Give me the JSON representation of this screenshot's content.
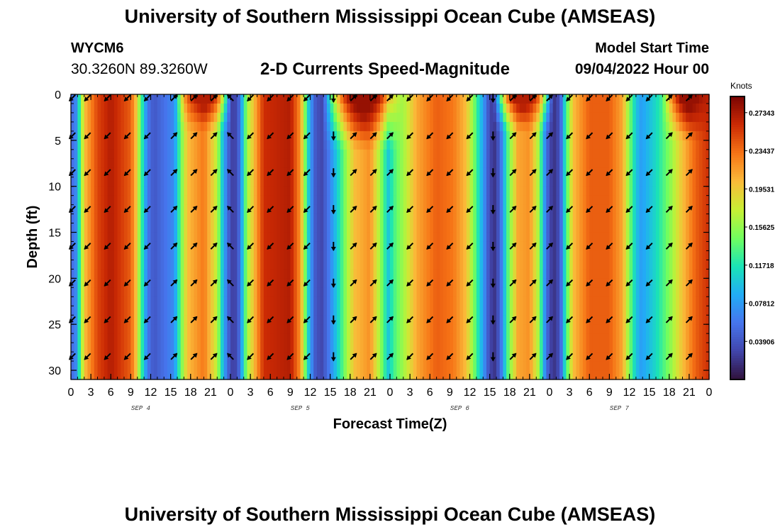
{
  "header": {
    "title": "University of Southern Mississippi Ocean Cube (AMSEAS)",
    "station_id": "WYCM6",
    "coordinates": "30.3260N  89.3260W",
    "plot_subtitle": "2-D Currents Speed-Magnitude",
    "model_start_label": "Model Start Time",
    "model_start_value": "09/04/2022 Hour 00"
  },
  "footer": {
    "repeat_title": "University of Southern Mississippi Ocean Cube (AMSEAS)"
  },
  "chart_data": {
    "type": "heatmap",
    "title": "2-D Currents Speed-Magnitude",
    "xlabel": "Forecast Time(Z)",
    "ylabel": "Depth (ft)",
    "x_range_hours": [
      0,
      96
    ],
    "y_range_ft": [
      0,
      31
    ],
    "y_inverted": true,
    "x_tick_labels": [
      "0",
      "3",
      "6",
      "9",
      "12",
      "15",
      "18",
      "21",
      "0",
      "3",
      "6",
      "9",
      "12",
      "15",
      "18",
      "21",
      "0",
      "3",
      "6",
      "9",
      "12",
      "15",
      "18",
      "21",
      "0",
      "3",
      "6",
      "9",
      "12",
      "15",
      "18",
      "21",
      "0"
    ],
    "x_tick_hours": [
      0,
      3,
      6,
      9,
      12,
      15,
      18,
      21,
      24,
      27,
      30,
      33,
      36,
      39,
      42,
      45,
      48,
      51,
      54,
      57,
      60,
      63,
      66,
      69,
      72,
      75,
      78,
      81,
      84,
      87,
      90,
      93,
      96
    ],
    "day_labels": [
      {
        "label": "SEP 4",
        "hour": 10.5
      },
      {
        "label": "SEP 5",
        "hour": 34.5
      },
      {
        "label": "SEP 6",
        "hour": 58.5
      },
      {
        "label": "SEP 7",
        "hour": 82.5
      }
    ],
    "y_ticks": [
      0,
      5,
      10,
      15,
      20,
      25,
      30
    ],
    "colorbar": {
      "unit_label": "Knots",
      "min": 0.0,
      "max": 0.29,
      "tick_labels": [
        "0.27343",
        "0.23437",
        "0.19531",
        "0.15625",
        "0.11718",
        "0.07812",
        "0.03906"
      ],
      "tick_values": [
        0.27343,
        0.23437,
        0.19531,
        0.15625,
        0.11718,
        0.07812,
        0.03906
      ]
    },
    "speed_profile": {
      "description": "approximate depth-averaged speed (knots) vs forecast hour",
      "hours": [
        0,
        0.8,
        2,
        4,
        6,
        9,
        9.8,
        10.6,
        11.5,
        12.5,
        13.5,
        15.5,
        16.5,
        17.5,
        20,
        22,
        22.8,
        23.6,
        24.5,
        25.3,
        26.5,
        29,
        33,
        34.5,
        35.2,
        36,
        36.8,
        37.7,
        38.8,
        40.5,
        41.5,
        42.6,
        45,
        46.5,
        47.7,
        48.6,
        50.4,
        52,
        55,
        57.5,
        59.5,
        61,
        62.2,
        63,
        63.8,
        64.6,
        65.8,
        67.2,
        69,
        70.4,
        71.2,
        72,
        72.8,
        73.6,
        74.4,
        75.5,
        78,
        81,
        83,
        84,
        85,
        85.8,
        88,
        90,
        92,
        94,
        96
      ],
      "speed": [
        0.05,
        0.07,
        0.2,
        0.25,
        0.27,
        0.24,
        0.2,
        0.13,
        0.06,
        0.04,
        0.05,
        0.07,
        0.14,
        0.2,
        0.23,
        0.17,
        0.1,
        0.05,
        0.02,
        0.05,
        0.16,
        0.26,
        0.27,
        0.22,
        0.15,
        0.08,
        0.04,
        0.03,
        0.06,
        0.12,
        0.16,
        0.2,
        0.22,
        0.16,
        0.1,
        0.13,
        0.17,
        0.21,
        0.24,
        0.23,
        0.2,
        0.13,
        0.07,
        0.03,
        0.02,
        0.05,
        0.14,
        0.21,
        0.22,
        0.16,
        0.08,
        0.03,
        0.02,
        0.04,
        0.12,
        0.2,
        0.24,
        0.24,
        0.21,
        0.15,
        0.1,
        0.08,
        0.11,
        0.15,
        0.2,
        0.24,
        0.26
      ]
    },
    "surface_highs": [
      {
        "center_hour": 20,
        "width_hours": 4,
        "max_depth_ft": 4,
        "speed": 0.27
      },
      {
        "center_hour": 44,
        "width_hours": 6,
        "max_depth_ft": 6,
        "speed": 0.28
      },
      {
        "center_hour": 68,
        "width_hours": 4.5,
        "max_depth_ft": 4,
        "speed": 0.27
      },
      {
        "center_hour": 93,
        "width_hours": 4,
        "max_depth_ft": 5,
        "speed": 0.28
      }
    ],
    "vector_columns_hours": [
      0,
      2.5,
      5.5,
      8.5,
      11.5,
      15.5,
      18.5,
      21.5,
      24,
      27,
      30,
      33,
      35.5,
      39.5,
      42.5,
      45.5,
      48,
      51,
      54,
      57,
      60,
      63.5,
      66.5,
      69.5,
      72,
      75,
      78,
      81,
      84,
      87,
      90,
      93
    ],
    "vector_rows_ft": [
      0,
      4.5,
      8.5,
      12.5,
      16.5,
      20.5,
      24.5,
      28.5
    ],
    "vector_direction_by_column": [
      "down-left",
      "down-left",
      "down-left",
      "down-left",
      "down-left",
      "up-right",
      "up-right",
      "up-right",
      "up-left",
      "down-left",
      "down-left",
      "down-left",
      "down-left",
      "down",
      "up-right",
      "up-right",
      "up-right",
      "down-left",
      "down-left",
      "down-left",
      "down-left",
      "down",
      "up-right",
      "up-right",
      "up-right",
      "down-left",
      "down-left",
      "down-left",
      "down-left",
      "down-left",
      "up-right",
      "up-right"
    ]
  }
}
